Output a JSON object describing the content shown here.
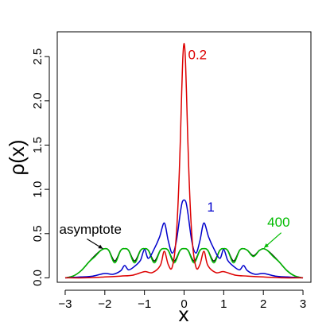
{
  "chart_data": {
    "type": "line",
    "xlabel": "x",
    "ylabel": "ρ(x)",
    "xlim": [
      -3.2,
      3.2
    ],
    "ylim": [
      -0.05,
      2.78
    ],
    "xticks": [
      -3,
      -2,
      -1,
      0,
      1,
      2,
      3
    ],
    "yticks": [
      0.0,
      0.5,
      1.0,
      1.5,
      2.0,
      2.5
    ],
    "ytick_labels": [
      "0.0",
      "0.5",
      "1.0",
      "1.5",
      "2.0",
      "2.5"
    ],
    "grid": false,
    "series": [
      {
        "name": "asymptote",
        "color": "#000000",
        "x": [
          -3.0,
          -2.8,
          -2.6,
          -2.4,
          -2.25,
          -2.1,
          -2.0,
          -1.9,
          -1.75,
          -1.6,
          -1.5,
          -1.4,
          -1.25,
          -1.1,
          -1.0,
          -0.9,
          -0.75,
          -0.6,
          -0.5,
          -0.4,
          -0.25,
          -0.1,
          0.0,
          0.1,
          0.25,
          0.4,
          0.5,
          0.6,
          0.75,
          0.9,
          1.0,
          1.1,
          1.25,
          1.4,
          1.5,
          1.6,
          1.75,
          1.9,
          2.0,
          2.1,
          2.25,
          2.4,
          2.6,
          2.8,
          3.0
        ],
        "y": [
          0.0,
          0.02,
          0.08,
          0.18,
          0.25,
          0.31,
          0.33,
          0.31,
          0.19,
          0.31,
          0.33,
          0.31,
          0.19,
          0.31,
          0.33,
          0.31,
          0.19,
          0.31,
          0.33,
          0.31,
          0.19,
          0.31,
          0.33,
          0.31,
          0.19,
          0.31,
          0.33,
          0.31,
          0.19,
          0.31,
          0.33,
          0.31,
          0.19,
          0.31,
          0.33,
          0.31,
          0.25,
          0.31,
          0.33,
          0.31,
          0.25,
          0.18,
          0.08,
          0.02,
          0.0
        ]
      },
      {
        "name": "400",
        "color": "#00bb00",
        "x": [
          -3.0,
          -2.8,
          -2.6,
          -2.4,
          -2.25,
          -2.1,
          -2.0,
          -1.9,
          -1.75,
          -1.6,
          -1.5,
          -1.4,
          -1.25,
          -1.1,
          -1.0,
          -0.9,
          -0.75,
          -0.6,
          -0.5,
          -0.4,
          -0.25,
          -0.1,
          0.0,
          0.1,
          0.25,
          0.4,
          0.5,
          0.6,
          0.75,
          0.9,
          1.0,
          1.1,
          1.25,
          1.4,
          1.5,
          1.6,
          1.75,
          1.9,
          2.0,
          2.1,
          2.25,
          2.4,
          2.6,
          2.8,
          3.0
        ],
        "y": [
          0.0,
          0.02,
          0.08,
          0.18,
          0.24,
          0.31,
          0.33,
          0.31,
          0.17,
          0.31,
          0.33,
          0.31,
          0.17,
          0.31,
          0.33,
          0.31,
          0.17,
          0.31,
          0.33,
          0.31,
          0.17,
          0.31,
          0.33,
          0.31,
          0.17,
          0.31,
          0.33,
          0.31,
          0.17,
          0.31,
          0.33,
          0.31,
          0.17,
          0.31,
          0.33,
          0.31,
          0.24,
          0.31,
          0.33,
          0.31,
          0.24,
          0.18,
          0.08,
          0.02,
          0.0
        ]
      },
      {
        "name": "1",
        "color": "#0000cc",
        "x": [
          -3.0,
          -2.6,
          -2.3,
          -2.0,
          -1.8,
          -1.6,
          -1.5,
          -1.4,
          -1.25,
          -1.1,
          -1.0,
          -0.9,
          -0.75,
          -0.62,
          -0.5,
          -0.4,
          -0.3,
          -0.2,
          -0.1,
          -0.05,
          0.0,
          0.05,
          0.1,
          0.2,
          0.3,
          0.4,
          0.5,
          0.62,
          0.75,
          0.9,
          1.0,
          1.1,
          1.25,
          1.4,
          1.5,
          1.6,
          1.8,
          2.0,
          2.3,
          2.6,
          3.0
        ],
        "y": [
          0.0,
          0.01,
          0.02,
          0.05,
          0.04,
          0.08,
          0.14,
          0.09,
          0.13,
          0.2,
          0.32,
          0.22,
          0.33,
          0.46,
          0.62,
          0.42,
          0.28,
          0.4,
          0.72,
          0.85,
          0.88,
          0.85,
          0.72,
          0.4,
          0.28,
          0.42,
          0.62,
          0.46,
          0.33,
          0.22,
          0.32,
          0.2,
          0.13,
          0.09,
          0.14,
          0.08,
          0.04,
          0.05,
          0.02,
          0.01,
          0.0
        ]
      },
      {
        "name": "0.2",
        "color": "#dd0000",
        "x": [
          -3.0,
          -2.5,
          -2.0,
          -1.6,
          -1.3,
          -1.0,
          -0.8,
          -0.6,
          -0.5,
          -0.4,
          -0.3,
          -0.2,
          -0.12,
          -0.06,
          -0.03,
          0.0,
          0.03,
          0.06,
          0.12,
          0.2,
          0.3,
          0.4,
          0.5,
          0.6,
          0.8,
          1.0,
          1.3,
          1.6,
          2.0,
          2.5,
          3.0
        ],
        "y": [
          0.0,
          0.0,
          0.01,
          0.02,
          0.03,
          0.07,
          0.06,
          0.14,
          0.3,
          0.15,
          0.12,
          0.45,
          1.2,
          2.1,
          2.5,
          2.65,
          2.5,
          2.1,
          1.2,
          0.45,
          0.12,
          0.15,
          0.3,
          0.14,
          0.06,
          0.07,
          0.03,
          0.02,
          0.01,
          0.0,
          0.0
        ]
      }
    ],
    "annotations": [
      {
        "text": "0.2",
        "color": "#dd0000",
        "x": 0.1,
        "y": 2.47
      },
      {
        "text": "1",
        "color": "#0000cc",
        "x": 0.58,
        "y": 0.75
      },
      {
        "text": "400",
        "color": "#00bb00",
        "x": 2.1,
        "y": 0.58
      },
      {
        "text": "asymptote",
        "color": "#000000",
        "x": -3.15,
        "y": 0.5
      }
    ]
  }
}
